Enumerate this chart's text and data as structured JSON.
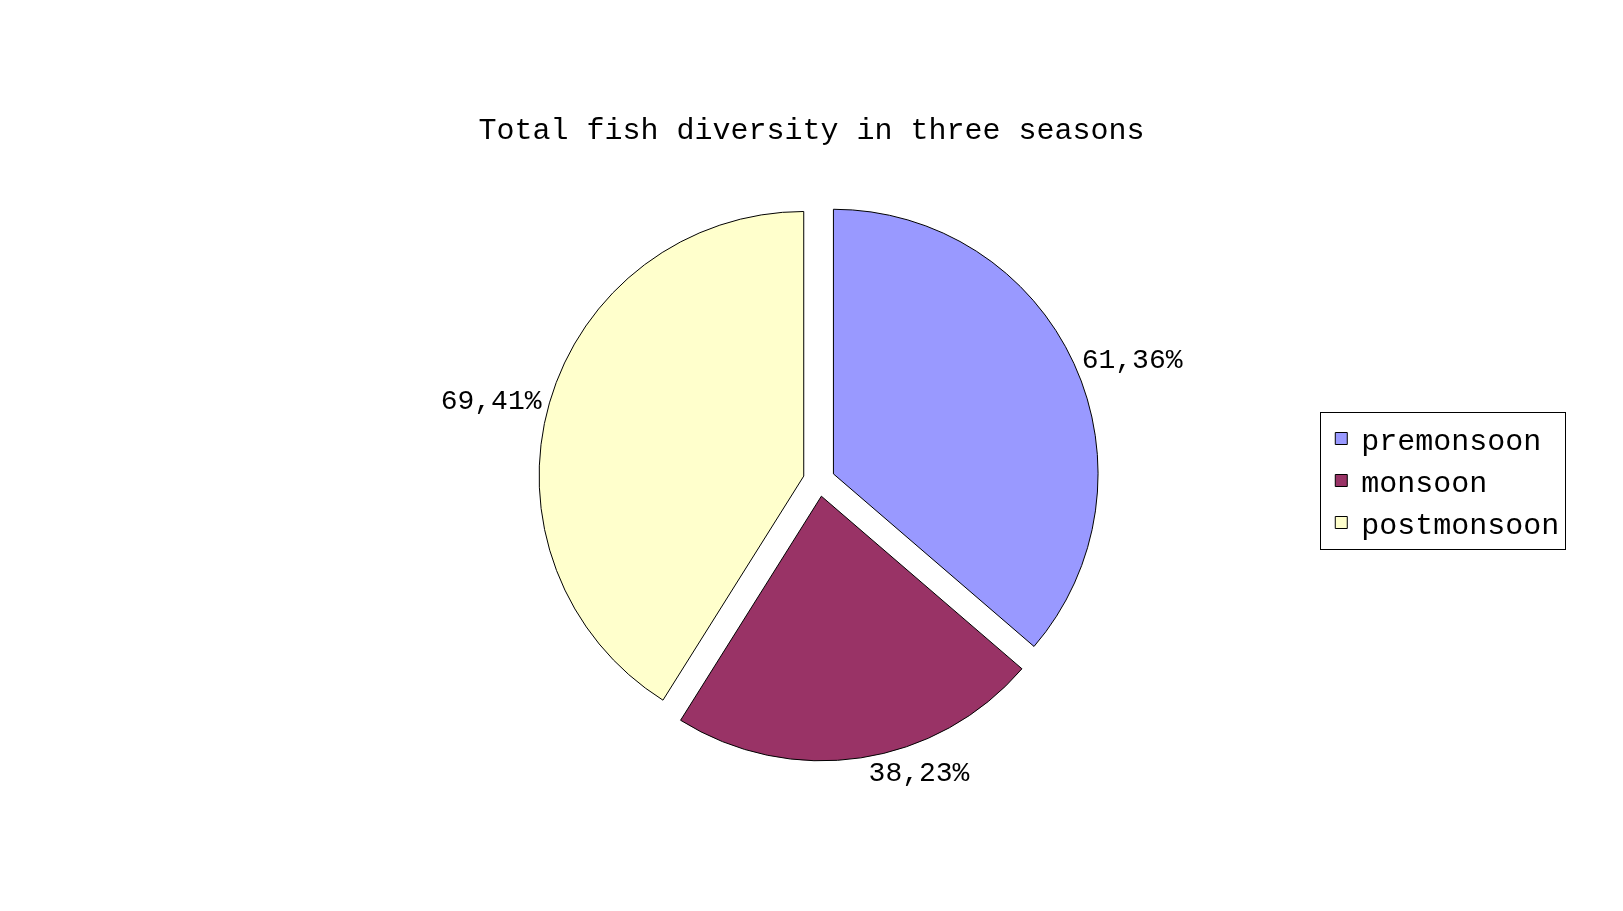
{
  "chart_data": {
    "type": "pie",
    "title": "Total fish diversity in three seasons",
    "categories": [
      "premonsoon",
      "monsoon",
      "postmonsoon"
    ],
    "values": [
      61.36,
      38.23,
      69.41
    ],
    "value_labels": [
      "61,36%",
      "38,23%",
      "69,41%"
    ],
    "colors": [
      "#9999ff",
      "#993366",
      "#ffffcc"
    ],
    "legend": "right"
  }
}
